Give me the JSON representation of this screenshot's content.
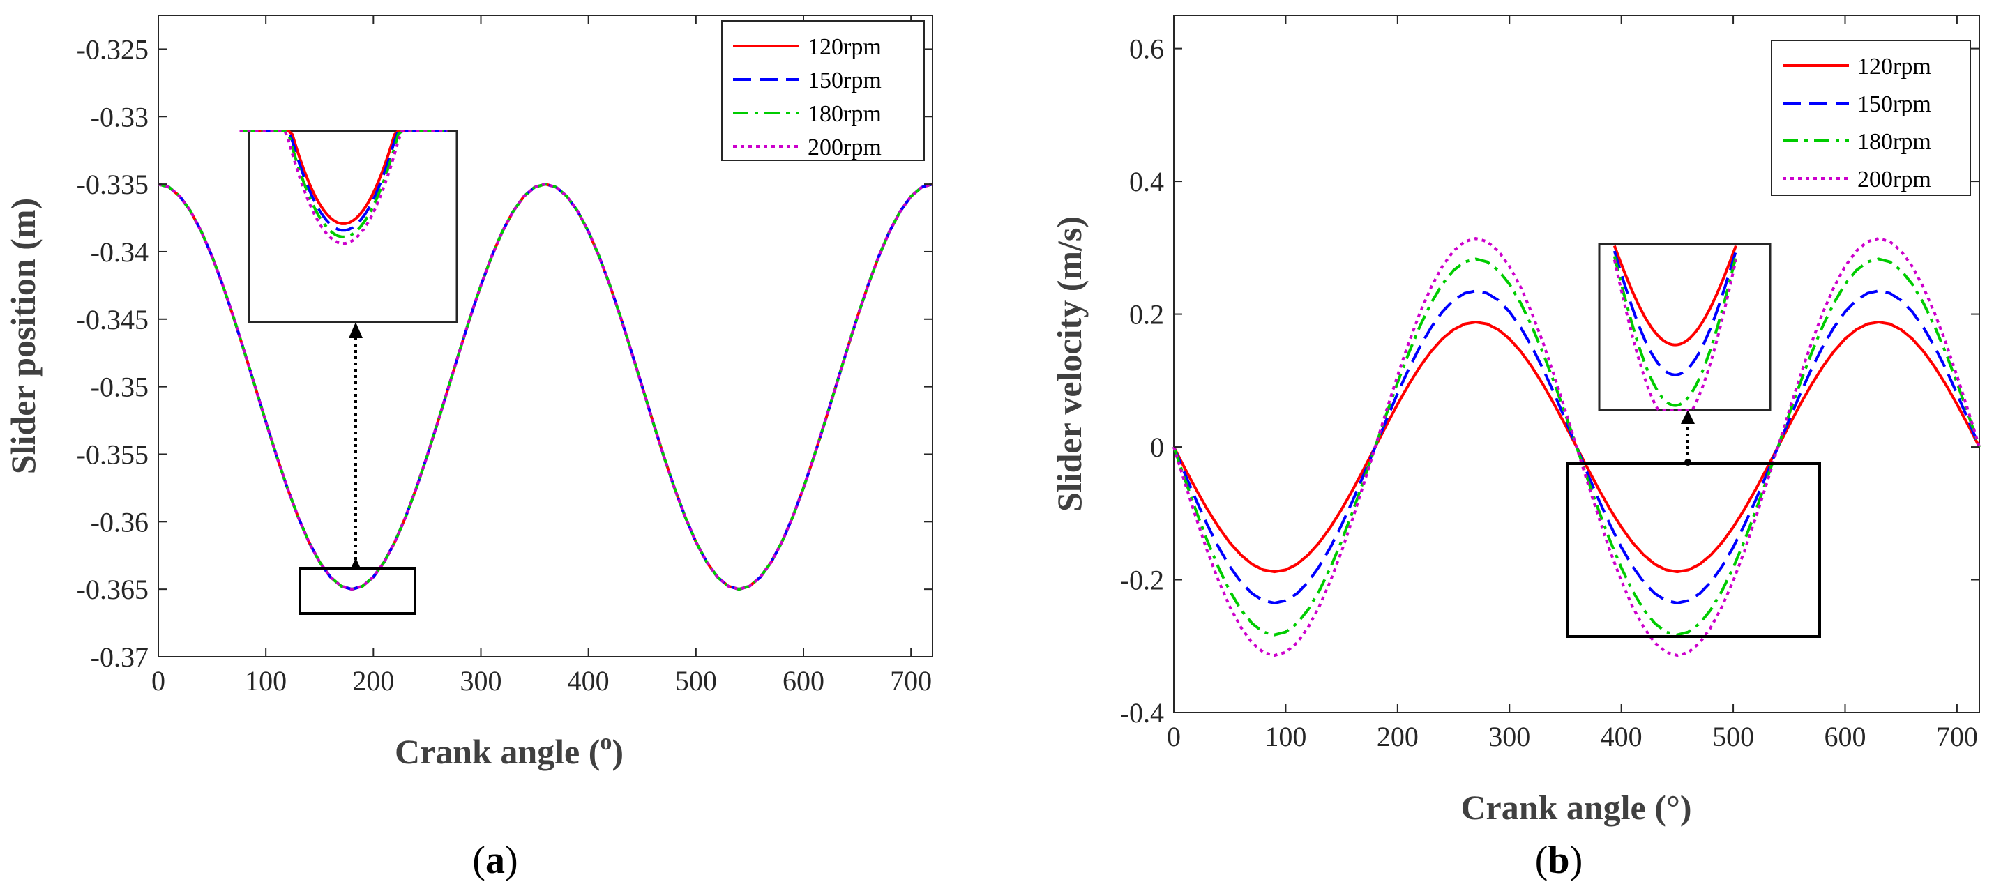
{
  "chart_data": [
    {
      "id": "a",
      "type": "line",
      "caption": {
        "open": "(",
        "letter": "a",
        "close": ")"
      },
      "xlabel": "Crank angle (",
      "xlabel_sup": "o",
      "xlabel_close": ")",
      "ylabel": "Slider position (m)",
      "xlim": [
        0,
        720
      ],
      "ylim": [
        -0.37,
        -0.3225
      ],
      "xticks": [
        0,
        100,
        200,
        300,
        400,
        500,
        600,
        700
      ],
      "xtick_labels": [
        "0",
        "100",
        "200",
        "300",
        "400",
        "500",
        "600",
        "700"
      ],
      "yticks": [
        -0.37,
        -0.365,
        -0.36,
        -0.355,
        -0.35,
        -0.345,
        -0.34,
        -0.335,
        -0.33,
        -0.325
      ],
      "ytick_labels": [
        "-0.37",
        "-0.365",
        "-0.36",
        "-0.355",
        "-0.35",
        "-0.345",
        "-0.34",
        "-0.335",
        "-0.33",
        "-0.325"
      ],
      "grid": false,
      "legend": "top-right",
      "model": "offset + amplitude * cos(angle)",
      "angle_step": 10,
      "series": [
        {
          "name": "120rpm",
          "color": "#ff0000",
          "dash": "solid",
          "offset": -0.35,
          "amplitude": 0.015
        },
        {
          "name": "150rpm",
          "color": "#0000ff",
          "dash": "dashed",
          "offset": -0.35,
          "amplitude": 0.015
        },
        {
          "name": "180rpm",
          "color": "#00cc00",
          "dash": "dashdot",
          "offset": -0.35,
          "amplitude": 0.015
        },
        {
          "name": "200rpm",
          "color": "#cc00cc",
          "dash": "dotted",
          "offset": -0.35,
          "amplitude": 0.015
        }
      ],
      "inset": {
        "note": "zoom of minimum near 180 degrees",
        "minima": [
          -0.365,
          -0.36505,
          -0.3651,
          -0.36512
        ]
      },
      "zoom_region": {
        "x": [
          130,
          240
        ],
        "y": [
          -0.3668,
          -0.3633
        ]
      }
    },
    {
      "id": "b",
      "type": "line",
      "caption": {
        "open": "(",
        "letter": "b",
        "close": ")"
      },
      "xlabel": "Crank angle (°)",
      "ylabel": "Slider velocity (m/s)",
      "xlim": [
        0,
        720
      ],
      "ylim": [
        -0.4,
        0.65
      ],
      "xticks": [
        0,
        100,
        200,
        300,
        400,
        500,
        600,
        700
      ],
      "xtick_labels": [
        "0",
        "100",
        "200",
        "300",
        "400",
        "500",
        "600",
        "700"
      ],
      "yticks": [
        -0.4,
        -0.2,
        0,
        0.2,
        0.4,
        0.6
      ],
      "ytick_labels": [
        "-0.4",
        "-0.2",
        "0",
        "0.2",
        "0.4",
        "0.6"
      ],
      "grid": false,
      "legend": "top-right",
      "model": "-amplitude * sin(angle)",
      "angle_step": 10,
      "series": [
        {
          "name": "120rpm",
          "color": "#ff0000",
          "dash": "solid",
          "amplitude": 0.188
        },
        {
          "name": "150rpm",
          "color": "#0000ff",
          "dash": "dashed",
          "amplitude": 0.235
        },
        {
          "name": "180rpm",
          "color": "#00cc00",
          "dash": "dashdot",
          "amplitude": 0.283
        },
        {
          "name": "200rpm",
          "color": "#cc00cc",
          "dash": "dotted",
          "amplitude": 0.314
        }
      ],
      "inset": {
        "note": "zoom of minima near 450 degrees"
      },
      "zoom_region": {
        "x": [
          350,
          575
        ],
        "y": [
          -0.29,
          -0.03
        ]
      }
    }
  ]
}
